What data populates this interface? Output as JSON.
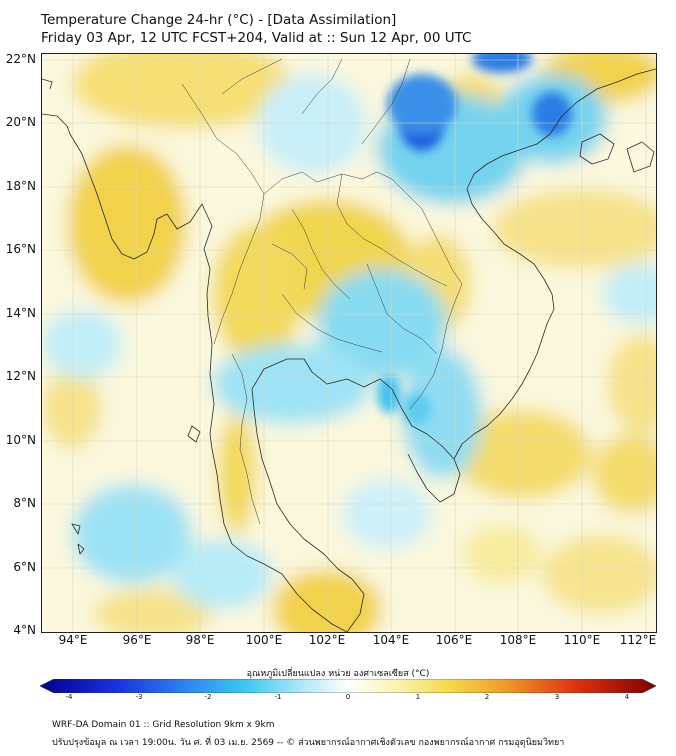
{
  "title": {
    "line1": "Temperature Change 24-hr (°C) - [Data Assimilation]",
    "line2": "Friday 03 Apr, 12 UTC FCST+204, Valid at :: Sun 12 Apr, 00 UTC"
  },
  "map": {
    "lat_labels": [
      "22°N",
      "20°N",
      "18°N",
      "16°N",
      "14°N",
      "12°N",
      "10°N",
      "8°N",
      "6°N",
      "4°N"
    ],
    "lon_labels": [
      "94°E",
      "96°E",
      "98°E",
      "100°E",
      "102°E",
      "104°E",
      "106°E",
      "108°E",
      "110°E",
      "112°E"
    ],
    "lat_range": [
      4,
      22.2
    ],
    "lon_range": [
      93.1,
      112.4
    ]
  },
  "colorbar": {
    "title": "อุณหภูมิเปลี่ยนแปลง หน่วย องศาเซลเซียส (°C)",
    "ticks": [
      "-4",
      "-3",
      "-2",
      "-1",
      "0",
      "1",
      "2",
      "3",
      "4"
    ],
    "range": [
      -4,
      4
    ]
  },
  "footer": {
    "line1": "WRF-DA Domain 01 :: Grid Resolution 9km x 9km",
    "line2": "ปรับปรุงข้อมูล ณ เวลา 19:00น. วัน ศ. ที่ 03 เม.ย. 2569 -- © ส่วนพยากรณ์อากาศเชิงตัวเลข กองพยากรณ์อากาศ กรมอุตุนิยมวิทยา"
  }
}
